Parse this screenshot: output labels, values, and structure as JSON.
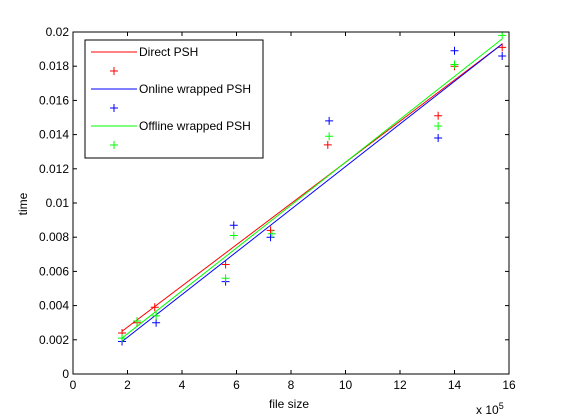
{
  "chart_data": {
    "type": "scatter",
    "xlabel": "file size",
    "ylabel": "time",
    "x_exponent_label": "x 10",
    "x_exponent_power": "5",
    "xlim": [
      0,
      16
    ],
    "ylim": [
      0,
      0.02
    ],
    "x_ticks": [
      "0",
      "2",
      "4",
      "6",
      "8",
      "10",
      "12",
      "14",
      "16"
    ],
    "y_ticks": [
      "0",
      "0.002",
      "0.004",
      "0.006",
      "0.008",
      "0.01",
      "0.012",
      "0.014",
      "0.016",
      "0.018",
      "0.02"
    ],
    "grid": false,
    "legend_position": "top-left",
    "x_scale_note": "x values in units of 10^5",
    "series": [
      {
        "name": "Direct PSH",
        "color": "#ff0000",
        "points": [
          [
            1.8,
            0.0024
          ],
          [
            2.35,
            0.003
          ],
          [
            3.0,
            0.0039
          ],
          [
            5.6,
            0.0064
          ],
          [
            7.25,
            0.0084
          ],
          [
            9.35,
            0.0134
          ],
          [
            13.4,
            0.0151
          ],
          [
            14.0,
            0.018
          ],
          [
            15.75,
            0.0191
          ]
        ],
        "fit": [
          [
            1.8,
            0.0025
          ],
          [
            15.75,
            0.0193
          ]
        ]
      },
      {
        "name": "Online wrapped PSH",
        "color": "#0000ff",
        "points": [
          [
            1.8,
            0.0019
          ],
          [
            3.05,
            0.003
          ],
          [
            5.6,
            0.0054
          ],
          [
            5.9,
            0.0087
          ],
          [
            7.25,
            0.008
          ],
          [
            9.4,
            0.0148
          ],
          [
            13.4,
            0.0138
          ],
          [
            14.0,
            0.0189
          ],
          [
            15.75,
            0.0186
          ]
        ],
        "fit": [
          [
            1.8,
            0.0019
          ],
          [
            15.75,
            0.0193
          ]
        ]
      },
      {
        "name": "Offline wrapped PSH",
        "color": "#00ff00",
        "points": [
          [
            1.8,
            0.0021
          ],
          [
            2.35,
            0.0031
          ],
          [
            3.05,
            0.0034
          ],
          [
            5.6,
            0.0056
          ],
          [
            5.9,
            0.0081
          ],
          [
            7.3,
            0.0082
          ],
          [
            9.4,
            0.0139
          ],
          [
            13.4,
            0.0145
          ],
          [
            14.0,
            0.0181
          ],
          [
            15.75,
            0.0198
          ]
        ],
        "fit": [
          [
            1.8,
            0.0021
          ],
          [
            15.75,
            0.0196
          ]
        ]
      }
    ]
  }
}
